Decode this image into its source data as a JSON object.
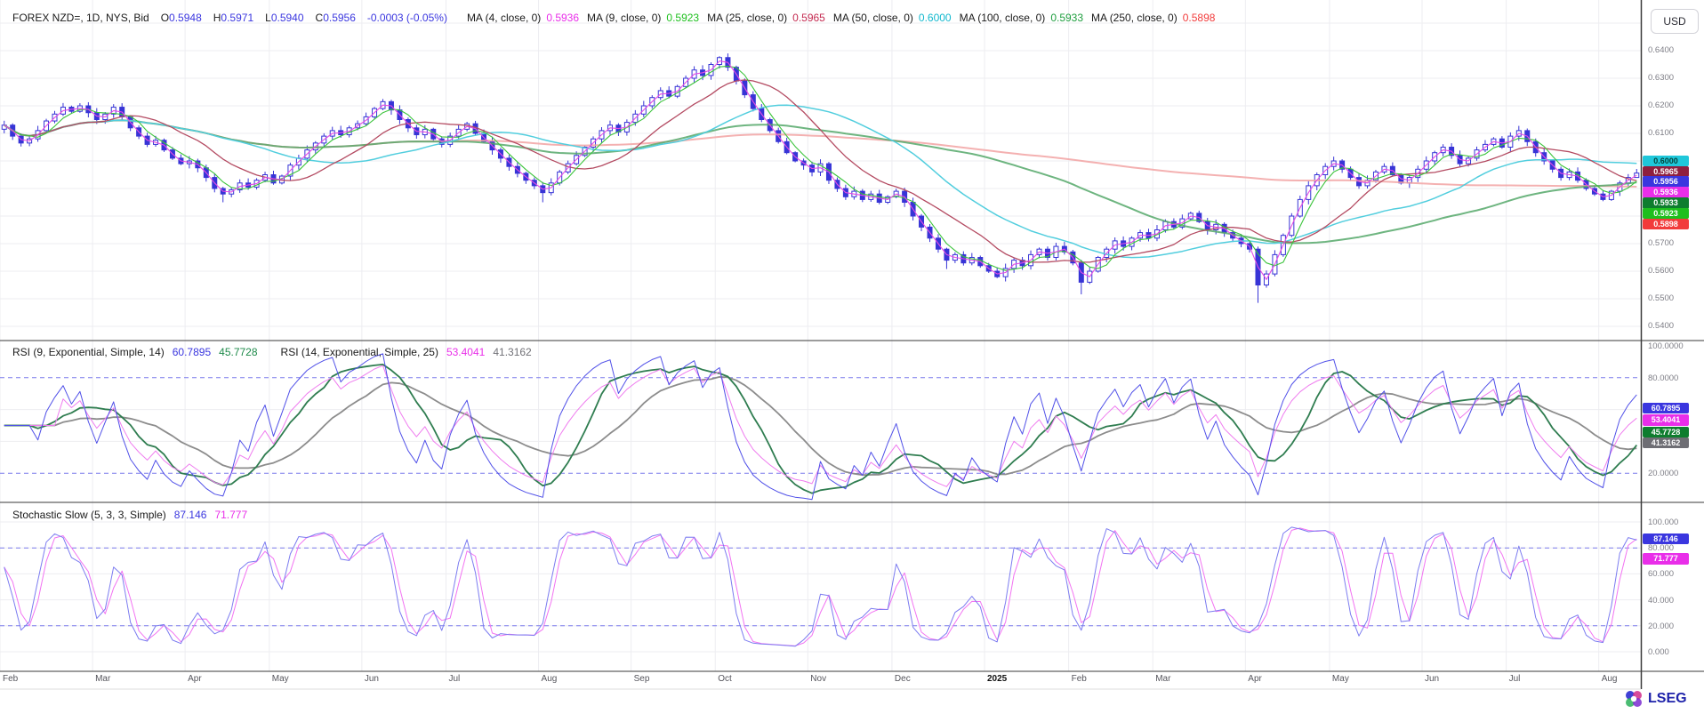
{
  "header": {
    "symbol_text": "FOREX NZD=, 1D, NYS, Bid",
    "open_label": "O",
    "open": "0.5948",
    "high_label": "H",
    "high": "0.5971",
    "low_label": "L",
    "low": "0.5940",
    "close_label": "C",
    "close": "0.5956",
    "change": "-0.0003 (-0.05%)",
    "ohlc_color": "#3a36df",
    "ma_legend": [
      {
        "label": "MA (4, close, 0)",
        "value": "0.5936",
        "color": "#e92ee9"
      },
      {
        "label": "MA (9, close, 0)",
        "value": "0.5923",
        "color": "#1dbf1d"
      },
      {
        "label": "MA (25, close, 0)",
        "value": "0.5965",
        "color": "#c42a50"
      },
      {
        "label": "MA (50, close, 0)",
        "value": "0.6000",
        "color": "#12b8ce"
      },
      {
        "label": "MA (100, close, 0)",
        "value": "0.5933",
        "color": "#1e9e3e"
      },
      {
        "label": "MA (250, close, 0)",
        "value": "0.5898",
        "color": "#f23b3b"
      }
    ]
  },
  "currency_button": "USD",
  "price_axis": {
    "ticks": [
      "0.6400",
      "0.6300",
      "0.6200",
      "0.6100",
      "0.6000",
      "0.5900",
      "0.5800",
      "0.5700",
      "0.5600",
      "0.5500",
      "0.5400"
    ]
  },
  "price_badges": [
    {
      "label": "0.6000",
      "v": 0.6,
      "bg": "#1fc7da",
      "fg": "#04433a"
    },
    {
      "label": "0.5965",
      "v": 0.5965,
      "bg": "#8f1f3f",
      "fg": "#ffffff"
    },
    {
      "label": "0.5956",
      "v": 0.5956,
      "bg": "#3a36df",
      "fg": "#ffffff"
    },
    {
      "label": "0.5936",
      "v": 0.5936,
      "bg": "#e92ee9",
      "fg": "#ffffff"
    },
    {
      "label": "0.5933",
      "v": 0.5933,
      "bg": "#0e7d2e",
      "fg": "#ffffff"
    },
    {
      "label": "0.5923",
      "v": 0.5923,
      "bg": "#1dbf1d",
      "fg": "#ffffff"
    },
    {
      "label": "0.5898",
      "v": 0.5898,
      "bg": "#f23b3b",
      "fg": "#ffffff"
    }
  ],
  "rsi_panel": {
    "title1": "RSI (9, Exponential, Simple, 14)",
    "v1": "60.7895",
    "v1_color": "#3a36df",
    "v2": "45.7728",
    "v2_color": "#1e8a4a",
    "title2": "RSI (14, Exponential, Simple, 25)",
    "v3": "53.4041",
    "v3_color": "#e92ee9",
    "v4": "41.3162",
    "v4_color": "#707076",
    "axis_ticks": [
      {
        "v": 100,
        "label": "100.0000"
      },
      {
        "v": 80,
        "label": "80.0000"
      },
      {
        "v": 20,
        "label": "20.0000"
      }
    ],
    "badges": [
      {
        "label": "60.7895",
        "v": 60.7895,
        "bg": "#3a36df",
        "fg": "#ffffff"
      },
      {
        "label": "53.4041",
        "v": 53.4041,
        "bg": "#e92ee9",
        "fg": "#ffffff"
      },
      {
        "label": "45.7728",
        "v": 45.7728,
        "bg": "#0e7d2e",
        "fg": "#ffffff"
      },
      {
        "label": "41.3162",
        "v": 41.3162,
        "bg": "#6e6e74",
        "fg": "#ffffff"
      }
    ]
  },
  "stoch_panel": {
    "title": "Stochastic Slow (5, 3, 3, Simple)",
    "v1": "87.146",
    "v1_color": "#3a36df",
    "v2": "71.777",
    "v2_color": "#e92ee9",
    "axis_ticks": [
      {
        "v": 100,
        "label": "100.000"
      },
      {
        "v": 80,
        "label": "80.000"
      },
      {
        "v": 60,
        "label": "60.000"
      },
      {
        "v": 40,
        "label": "40.000"
      },
      {
        "v": 20,
        "label": "20.000"
      },
      {
        "v": 0,
        "label": "0.000"
      }
    ],
    "badges": [
      {
        "label": "87.146",
        "v": 87.146,
        "bg": "#3a36df",
        "fg": "#ffffff"
      },
      {
        "label": "71.777",
        "v": 71.777,
        "bg": "#e92ee9",
        "fg": "#ffffff"
      }
    ]
  },
  "time_axis": {
    "months": [
      {
        "label": "Feb",
        "i": 0
      },
      {
        "label": "Mar",
        "i": 11
      },
      {
        "label": "Apr",
        "i": 22
      },
      {
        "label": "May",
        "i": 32
      },
      {
        "label": "Jun",
        "i": 43
      },
      {
        "label": "Jul",
        "i": 53
      },
      {
        "label": "Aug",
        "i": 64
      },
      {
        "label": "Sep",
        "i": 75
      },
      {
        "label": "Oct",
        "i": 85
      },
      {
        "label": "Nov",
        "i": 96
      },
      {
        "label": "Dec",
        "i": 106
      },
      {
        "label": "2025",
        "i": 117,
        "bold": true
      },
      {
        "label": "Feb",
        "i": 127
      },
      {
        "label": "Mar",
        "i": 137
      },
      {
        "label": "Apr",
        "i": 148
      },
      {
        "label": "May",
        "i": 158
      },
      {
        "label": "Jun",
        "i": 169
      },
      {
        "label": "Jul",
        "i": 179
      },
      {
        "label": "Aug",
        "i": 190
      }
    ]
  },
  "logo": {
    "text": "LSEG",
    "color": "#1e22aa"
  },
  "chart_data": {
    "type": "candlestick+oscillators",
    "symbol": "NZD=",
    "interval": "1D",
    "x_range": "Feb 2024 - Aug 2025",
    "style": {
      "grid_color": "#ededf1",
      "dashed_color": "#7a7aec",
      "divider_color": "#3a3a3a",
      "candle_color": "#3734d6"
    },
    "price_panel": {
      "ylim": [
        0.5476,
        0.658
      ],
      "gridline_step": 0.01,
      "closes": [
        0.613,
        0.609,
        0.6065,
        0.608,
        0.611,
        0.6145,
        0.617,
        0.6195,
        0.618,
        0.62,
        0.6175,
        0.615,
        0.617,
        0.6195,
        0.616,
        0.612,
        0.609,
        0.606,
        0.6075,
        0.604,
        0.601,
        0.599,
        0.6,
        0.5975,
        0.594,
        0.59,
        0.588,
        0.5895,
        0.592,
        0.5905,
        0.593,
        0.595,
        0.592,
        0.5945,
        0.5985,
        0.601,
        0.604,
        0.6065,
        0.609,
        0.611,
        0.6095,
        0.612,
        0.6135,
        0.616,
        0.619,
        0.6215,
        0.6185,
        0.615,
        0.612,
        0.6095,
        0.6115,
        0.608,
        0.606,
        0.609,
        0.6115,
        0.6135,
        0.61,
        0.607,
        0.604,
        0.601,
        0.598,
        0.5955,
        0.593,
        0.591,
        0.5885,
        0.592,
        0.596,
        0.599,
        0.602,
        0.605,
        0.608,
        0.611,
        0.613,
        0.6105,
        0.614,
        0.617,
        0.62,
        0.623,
        0.6255,
        0.6235,
        0.627,
        0.63,
        0.633,
        0.631,
        0.635,
        0.6375,
        0.634,
        0.629,
        0.624,
        0.619,
        0.615,
        0.611,
        0.607,
        0.603,
        0.6,
        0.5985,
        0.596,
        0.599,
        0.593,
        0.59,
        0.587,
        0.589,
        0.586,
        0.588,
        0.585,
        0.587,
        0.589,
        0.585,
        0.58,
        0.576,
        0.572,
        0.568,
        0.564,
        0.566,
        0.563,
        0.565,
        0.562,
        0.56,
        0.558,
        0.561,
        0.564,
        0.562,
        0.566,
        0.568,
        0.565,
        0.569,
        0.567,
        0.563,
        0.556,
        0.56,
        0.565,
        0.568,
        0.571,
        0.569,
        0.572,
        0.574,
        0.572,
        0.575,
        0.578,
        0.576,
        0.579,
        0.581,
        0.578,
        0.575,
        0.577,
        0.574,
        0.572,
        0.57,
        0.568,
        0.555,
        0.559,
        0.566,
        0.573,
        0.58,
        0.586,
        0.591,
        0.595,
        0.598,
        0.6,
        0.597,
        0.594,
        0.591,
        0.593,
        0.596,
        0.598,
        0.595,
        0.592,
        0.594,
        0.597,
        0.6,
        0.603,
        0.605,
        0.602,
        0.599,
        0.601,
        0.604,
        0.606,
        0.608,
        0.605,
        0.609,
        0.611,
        0.607,
        0.603,
        0.6,
        0.597,
        0.594,
        0.596,
        0.593,
        0.59,
        0.588,
        0.586,
        0.589,
        0.592,
        0.594,
        0.5956
      ],
      "wick_overrides": {
        "26": {
          "l": 0.585
        },
        "46": {
          "h": 0.6222
        },
        "64": {
          "l": 0.585
        },
        "85": {
          "h": 0.638
        },
        "112": {
          "l": 0.5608
        },
        "128": {
          "l": 0.5516
        },
        "149": {
          "l": 0.5485
        },
        "194": {
          "h": 0.5971,
          "l": 0.594
        }
      },
      "ma": [
        {
          "name": "MA4",
          "window": 2,
          "color": "#e44ce4",
          "width": 1.1
        },
        {
          "name": "MA9",
          "window": 4,
          "color": "#3cc43c",
          "width": 1.1
        },
        {
          "name": "MA25",
          "window": 12,
          "color": "#b44b62",
          "width": 1.3
        },
        {
          "name": "MA50",
          "window": 25,
          "color": "#52cede",
          "width": 1.5
        },
        {
          "name": "MA100",
          "window": 50,
          "color": "#55a86a",
          "width": 2
        },
        {
          "name": "MA250",
          "window": 125,
          "color": "#f2a3a3",
          "width": 2
        }
      ]
    },
    "rsi": {
      "dashed_levels": [
        80,
        20
      ],
      "faint_levels": [
        60,
        40
      ],
      "series": [
        {
          "name": "rsi14_avg",
          "avg_of": "rsi14",
          "window": 12,
          "color": "#8c8c8c",
          "width": 1.8,
          "z": 0
        },
        {
          "name": "rsi9_avg",
          "avg_of": "rsi9",
          "window": 7,
          "color": "#2f7d50",
          "width": 1.8,
          "z": 1
        },
        {
          "name": "rsi14",
          "period": 7,
          "color": "#ef7cef",
          "width": 1,
          "z": 2
        },
        {
          "name": "rsi9",
          "period": 4,
          "color": "#5050e8",
          "width": 1,
          "z": 3
        }
      ]
    },
    "stoch": {
      "dashed_levels": [
        80,
        20
      ],
      "faint_levels": [
        100,
        80,
        60,
        40,
        20,
        0
      ],
      "k_window": 3,
      "k_smooth": 2,
      "d_smooth": 2,
      "k_color": "#7c7cf0",
      "d_color": "#f273f2"
    }
  }
}
